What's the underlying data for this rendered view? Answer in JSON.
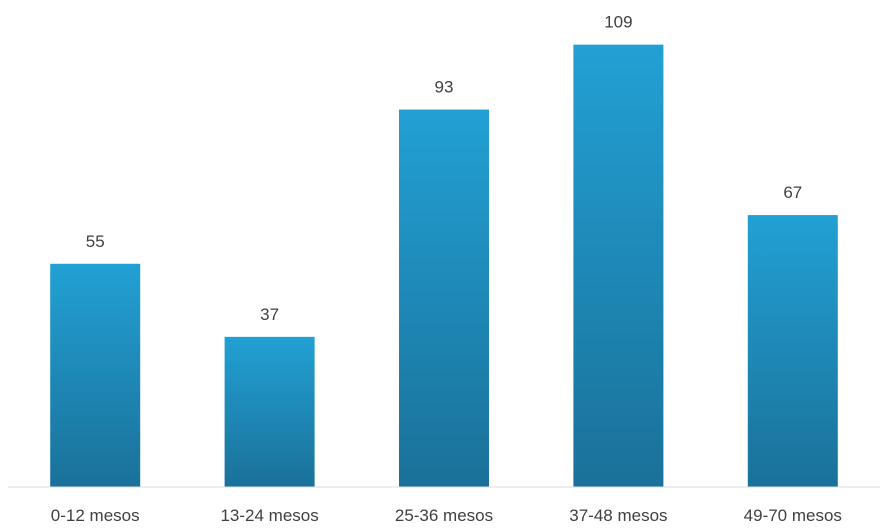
{
  "chart_data": {
    "type": "bar",
    "categories": [
      "0-12 mesos",
      "13-24 mesos",
      "25-36 mesos",
      "37-48 mesos",
      "49-70 mesos"
    ],
    "values": [
      55,
      37,
      93,
      109,
      67
    ],
    "title": "",
    "xlabel": "",
    "ylabel": "",
    "ylim": [
      0,
      120
    ],
    "grid": false,
    "legend": "none",
    "data_labels": true,
    "colors": {
      "bar_top": "#22a0d4",
      "bar_bottom": "#1a7199",
      "axis": "#d9d9d9",
      "text": "#404040"
    }
  }
}
